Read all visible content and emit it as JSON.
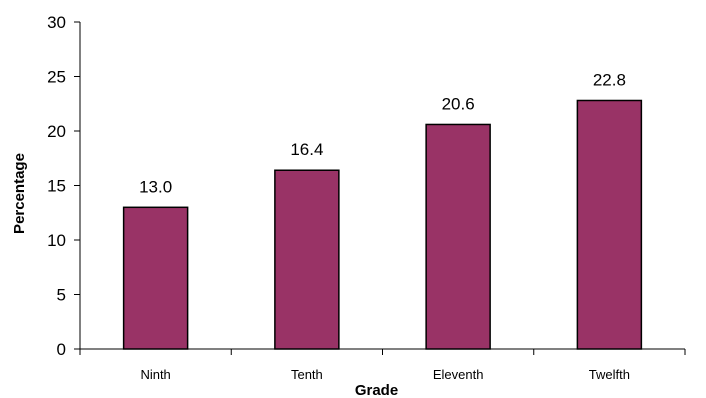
{
  "chart_data": {
    "type": "bar",
    "categories": [
      "Ninth",
      "Tenth",
      "Eleventh",
      "Twelfth"
    ],
    "values": [
      13.0,
      16.4,
      20.6,
      22.8
    ],
    "value_labels": [
      "13.0",
      "16.4",
      "20.6",
      "22.8"
    ],
    "xlabel": "Grade",
    "ylabel": "Percentage",
    "ylim": [
      0,
      30
    ],
    "yticks": [
      0,
      5,
      10,
      15,
      20,
      25,
      30
    ],
    "grid": false,
    "bar_color": "#993366"
  }
}
